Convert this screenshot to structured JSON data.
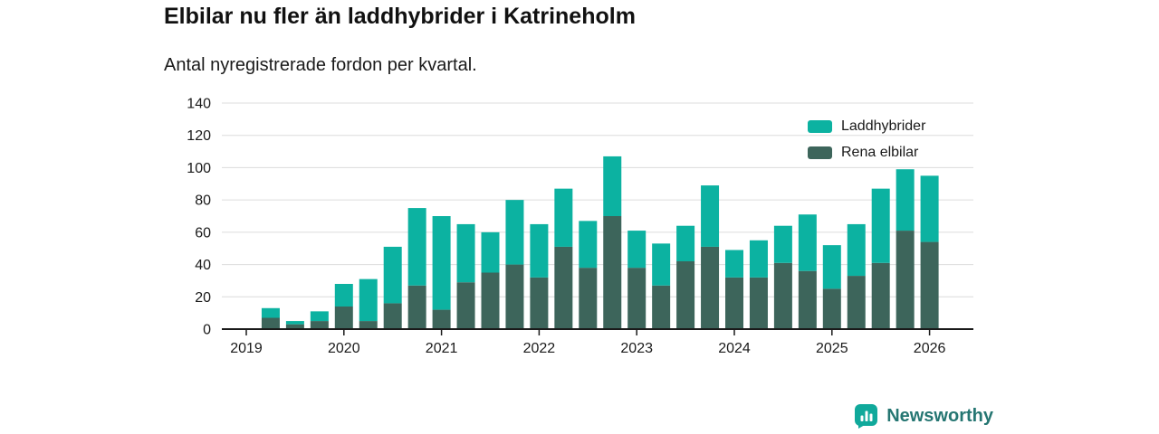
{
  "header": {
    "title": "Elbilar nu fler än laddhybrider i Katrineholm",
    "subtitle": "Antal nyregistrerade fordon per kvartal."
  },
  "chart_data": {
    "type": "bar",
    "stacked": true,
    "title": "Elbilar nu fler än laddhybrider i Katrineholm",
    "subtitle": "Antal nyregistrerade fordon per kvartal.",
    "xlabel": "",
    "ylabel": "",
    "ylim": [
      0,
      140
    ],
    "y_ticks": [
      0,
      20,
      40,
      60,
      80,
      100,
      120,
      140
    ],
    "x_tick_labels": [
      "2019",
      "2020",
      "2021",
      "2022",
      "2023",
      "2024",
      "2025",
      "2026"
    ],
    "grid": "horizontal",
    "legend_position": "top-right",
    "categories": [
      "2019 Q1",
      "2019 Q2",
      "2019 Q3",
      "2019 Q4",
      "2020 Q1",
      "2020 Q2",
      "2020 Q3",
      "2020 Q4",
      "2021 Q1",
      "2021 Q2",
      "2021 Q3",
      "2021 Q4",
      "2022 Q1",
      "2022 Q2",
      "2022 Q3",
      "2022 Q4",
      "2023 Q1",
      "2023 Q2",
      "2023 Q3",
      "2023 Q4",
      "2024 Q1",
      "2024 Q2",
      "2024 Q3",
      "2024 Q4",
      "2025 Q1",
      "2025 Q2",
      "2025 Q3",
      "2025 Q4"
    ],
    "series": [
      {
        "name": "Laddhybrider",
        "color": "#0cb2a1",
        "values": [
          6,
          2,
          6,
          14,
          26,
          35,
          48,
          58,
          36,
          25,
          40,
          33,
          36,
          29,
          37,
          23,
          26,
          22,
          38,
          17,
          23,
          23,
          35,
          27,
          32,
          46,
          38,
          41
        ]
      },
      {
        "name": "Rena elbilar",
        "color": "#3d655b",
        "values": [
          7,
          3,
          5,
          14,
          5,
          16,
          27,
          12,
          29,
          35,
          40,
          32,
          51,
          38,
          70,
          38,
          27,
          42,
          51,
          32,
          32,
          41,
          36,
          25,
          33,
          41,
          61,
          54
        ]
      }
    ],
    "stack_render_order": [
      1,
      0
    ],
    "totals": [
      13,
      5,
      11,
      28,
      31,
      51,
      75,
      70,
      65,
      60,
      80,
      65,
      87,
      67,
      107,
      61,
      53,
      64,
      89,
      49,
      55,
      64,
      71,
      52,
      65,
      87,
      99,
      95
    ],
    "colors": {
      "grid": "#dcdcdc",
      "axis": "#1a1a1a",
      "text": "#1a1a1a"
    }
  },
  "footer": {
    "brand": "Newsworthy",
    "color": "#257672",
    "icon_color": "#10a99b",
    "icon": "newsworthy-chart-bubble-icon"
  }
}
